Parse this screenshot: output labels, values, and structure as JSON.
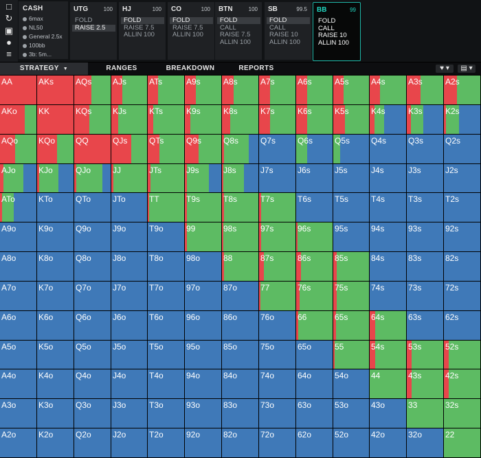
{
  "colors": {
    "raise": "#e8464b",
    "call": "#5dbb63",
    "fold": "#3f79b8",
    "active_accent": "#1fb8a8"
  },
  "cash_panel": {
    "title": "CASH",
    "lines": [
      "6max",
      "NL50",
      "General 2.5x",
      "100bb",
      "3b: 5m..."
    ]
  },
  "side_tools": [
    "bookmark-icon",
    "refresh-icon",
    "save-icon",
    "gamepad-icon",
    "sliders-icon"
  ],
  "positions": [
    {
      "name": "UTG",
      "stack": "100",
      "actions": [
        "FOLD",
        "RAISE 2.5"
      ],
      "selected": 1
    },
    {
      "name": "HJ",
      "stack": "100",
      "actions": [
        "FOLD",
        "RAISE 7.5",
        "ALLIN 100"
      ],
      "selected": 0
    },
    {
      "name": "CO",
      "stack": "100",
      "actions": [
        "FOLD",
        "RAISE 7.5",
        "ALLIN 100"
      ],
      "selected": 0
    },
    {
      "name": "BTN",
      "stack": "100",
      "actions": [
        "FOLD",
        "CALL",
        "RAISE 7.5",
        "ALLIN 100"
      ],
      "selected": 0
    },
    {
      "name": "SB",
      "stack": "99.5",
      "actions": [
        "FOLD",
        "CALL",
        "RAISE 10",
        "ALLIN 100"
      ],
      "selected": 0
    },
    {
      "name": "BB",
      "stack": "99",
      "actions": [
        "FOLD",
        "CALL",
        "RAISE 10",
        "ALLIN 100"
      ],
      "selected": -1,
      "active": true
    }
  ],
  "tabs": [
    "STRATEGY",
    "RANGES",
    "BREAKDOWN",
    "REPORTS"
  ],
  "active_tab": 0,
  "grid": {
    "rows": [
      [
        "AA",
        "AKs",
        "AQs",
        "AJs",
        "ATs",
        "A9s",
        "A8s",
        "A7s",
        "A6s",
        "A5s",
        "A4s",
        "A3s",
        "A2s"
      ],
      [
        "AKo",
        "KK",
        "KQs",
        "KJs",
        "KTs",
        "K9s",
        "K8s",
        "K7s",
        "K6s",
        "K5s",
        "K4s",
        "K3s",
        "K2s"
      ],
      [
        "AQo",
        "KQo",
        "QQ",
        "QJs",
        "QTs",
        "Q9s",
        "Q8s",
        "Q7s",
        "Q6s",
        "Q5s",
        "Q4s",
        "Q3s",
        "Q2s"
      ],
      [
        "AJo",
        "KJo",
        "QJo",
        "JJ",
        "JTs",
        "J9s",
        "J8s",
        "J7s",
        "J6s",
        "J5s",
        "J4s",
        "J3s",
        "J2s"
      ],
      [
        "ATo",
        "KTo",
        "QTo",
        "JTo",
        "TT",
        "T9s",
        "T8s",
        "T7s",
        "T6s",
        "T5s",
        "T4s",
        "T3s",
        "T2s"
      ],
      [
        "A9o",
        "K9o",
        "Q9o",
        "J9o",
        "T9o",
        "99",
        "98s",
        "97s",
        "96s",
        "95s",
        "94s",
        "93s",
        "92s"
      ],
      [
        "A8o",
        "K8o",
        "Q8o",
        "J8o",
        "T8o",
        "98o",
        "88",
        "87s",
        "86s",
        "85s",
        "84s",
        "83s",
        "82s"
      ],
      [
        "A7o",
        "K7o",
        "Q7o",
        "J7o",
        "T7o",
        "97o",
        "87o",
        "77",
        "76s",
        "75s",
        "74s",
        "73s",
        "72s"
      ],
      [
        "A6o",
        "K6o",
        "Q6o",
        "J6o",
        "T6o",
        "96o",
        "86o",
        "76o",
        "66",
        "65s",
        "64s",
        "63s",
        "62s"
      ],
      [
        "A5o",
        "K5o",
        "Q5o",
        "J5o",
        "T5o",
        "95o",
        "85o",
        "75o",
        "65o",
        "55",
        "54s",
        "53s",
        "52s"
      ],
      [
        "A4o",
        "K4o",
        "Q4o",
        "J4o",
        "T4o",
        "94o",
        "84o",
        "74o",
        "64o",
        "54o",
        "44",
        "43s",
        "42s"
      ],
      [
        "A3o",
        "K3o",
        "Q3o",
        "J3o",
        "T3o",
        "93o",
        "83o",
        "73o",
        "63o",
        "53o",
        "43o",
        "33",
        "32s"
      ],
      [
        "A2o",
        "K2o",
        "Q2o",
        "J2o",
        "T2o",
        "92o",
        "82o",
        "72o",
        "62o",
        "52o",
        "42o",
        "32o",
        "22"
      ]
    ],
    "strategy": [
      [
        [
          1,
          0,
          0
        ],
        [
          1,
          0,
          0
        ],
        [
          0.47,
          0.53,
          0
        ],
        [
          0.3,
          0.7,
          0
        ],
        [
          0.28,
          0.72,
          0
        ],
        [
          0.3,
          0.7,
          0
        ],
        [
          0.32,
          0.68,
          0
        ],
        [
          0.3,
          0.7,
          0
        ],
        [
          0.3,
          0.7,
          0
        ],
        [
          0.28,
          0.72,
          0
        ],
        [
          0.28,
          0.72,
          0
        ],
        [
          0.38,
          0.62,
          0
        ],
        [
          0.35,
          0.65,
          0
        ]
      ],
      [
        [
          0.68,
          0.32,
          0
        ],
        [
          1,
          0,
          0
        ],
        [
          0.42,
          0.58,
          0
        ],
        [
          0.2,
          0.8,
          0
        ],
        [
          0.16,
          0.84,
          0
        ],
        [
          0.15,
          0.85,
          0
        ],
        [
          0.22,
          0.78,
          0
        ],
        [
          0.3,
          0.7,
          0
        ],
        [
          0.3,
          0.7,
          0
        ],
        [
          0.33,
          0.67,
          0
        ],
        [
          0.13,
          0.27,
          0.6
        ],
        [
          0.12,
          0.33,
          0.55
        ],
        [
          0.06,
          0.35,
          0.59
        ]
      ],
      [
        [
          0.42,
          0.58,
          0
        ],
        [
          0.55,
          0.45,
          0
        ],
        [
          1,
          0,
          0
        ],
        [
          0.55,
          0.45,
          0
        ],
        [
          0.33,
          0.67,
          0
        ],
        [
          0.38,
          0.62,
          0
        ],
        [
          0.05,
          0.69,
          0.26
        ],
        [
          0,
          0,
          1
        ],
        [
          0,
          0.31,
          0.69
        ],
        [
          0,
          0.2,
          0.8
        ],
        [
          0,
          0,
          1
        ],
        [
          0,
          0,
          1
        ],
        [
          0,
          0,
          1
        ]
      ],
      [
        [
          0.1,
          0.55,
          0.35
        ],
        [
          0.05,
          0.53,
          0.42
        ],
        [
          0.05,
          0.73,
          0.22
        ],
        [
          0.06,
          0.94,
          0
        ],
        [
          0.08,
          0.92,
          0
        ],
        [
          0.06,
          0.6,
          0.34
        ],
        [
          0.04,
          0.57,
          0.39
        ],
        [
          0,
          0,
          1
        ],
        [
          0,
          0,
          1
        ],
        [
          0,
          0,
          1
        ],
        [
          0,
          0,
          1
        ],
        [
          0,
          0,
          1
        ],
        [
          0,
          0,
          1
        ]
      ],
      [
        [
          0.06,
          0.31,
          0.63
        ],
        [
          0,
          0,
          1
        ],
        [
          0,
          0,
          1
        ],
        [
          0,
          0,
          1
        ],
        [
          0.04,
          0.96,
          0
        ],
        [
          0.05,
          0.95,
          0
        ],
        [
          0.05,
          0.95,
          0
        ],
        [
          0.05,
          0.95,
          0
        ],
        [
          0,
          0,
          1
        ],
        [
          0,
          0,
          1
        ],
        [
          0,
          0,
          1
        ],
        [
          0,
          0,
          1
        ],
        [
          0,
          0,
          1
        ]
      ],
      [
        [
          0,
          0,
          1
        ],
        [
          0,
          0,
          1
        ],
        [
          0,
          0,
          1
        ],
        [
          0,
          0,
          1
        ],
        [
          0,
          0,
          1
        ],
        [
          0.05,
          0.95,
          0
        ],
        [
          0.04,
          0.96,
          0
        ],
        [
          0.06,
          0.94,
          0
        ],
        [
          0.04,
          0.96,
          0
        ],
        [
          0,
          0,
          1
        ],
        [
          0,
          0,
          1
        ],
        [
          0,
          0,
          1
        ],
        [
          0,
          0,
          1
        ]
      ],
      [
        [
          0,
          0,
          1
        ],
        [
          0,
          0,
          1
        ],
        [
          0,
          0,
          1
        ],
        [
          0,
          0,
          1
        ],
        [
          0,
          0,
          1
        ],
        [
          0,
          0,
          1
        ],
        [
          0.05,
          0.95,
          0
        ],
        [
          0.13,
          0.87,
          0
        ],
        [
          0.13,
          0.87,
          0
        ],
        [
          0.09,
          0.91,
          0
        ],
        [
          0,
          0,
          1
        ],
        [
          0,
          0,
          1
        ],
        [
          0,
          0,
          1
        ]
      ],
      [
        [
          0,
          0,
          1
        ],
        [
          0,
          0,
          1
        ],
        [
          0,
          0,
          1
        ],
        [
          0,
          0,
          1
        ],
        [
          0,
          0,
          1
        ],
        [
          0,
          0,
          1
        ],
        [
          0,
          0,
          1
        ],
        [
          0.04,
          0.96,
          0
        ],
        [
          0.09,
          0.91,
          0
        ],
        [
          0.09,
          0.91,
          0
        ],
        [
          0,
          0,
          1
        ],
        [
          0,
          0,
          1
        ],
        [
          0,
          0,
          1
        ]
      ],
      [
        [
          0,
          0,
          1
        ],
        [
          0,
          0,
          1
        ],
        [
          0,
          0,
          1
        ],
        [
          0,
          0,
          1
        ],
        [
          0,
          0,
          1
        ],
        [
          0,
          0,
          1
        ],
        [
          0,
          0,
          1
        ],
        [
          0,
          0,
          1
        ],
        [
          0.06,
          0.94,
          0
        ],
        [
          0.07,
          0.93,
          0
        ],
        [
          0.15,
          0.85,
          0
        ],
        [
          0,
          0,
          1
        ],
        [
          0,
          0,
          1
        ]
      ],
      [
        [
          0,
          0,
          1
        ],
        [
          0,
          0,
          1
        ],
        [
          0,
          0,
          1
        ],
        [
          0,
          0,
          1
        ],
        [
          0,
          0,
          1
        ],
        [
          0,
          0,
          1
        ],
        [
          0,
          0,
          1
        ],
        [
          0,
          0,
          1
        ],
        [
          0,
          0,
          1
        ],
        [
          0.03,
          0.97,
          0
        ],
        [
          0.15,
          0.85,
          0
        ],
        [
          0.14,
          0.86,
          0
        ],
        [
          0.13,
          0.87,
          0
        ]
      ],
      [
        [
          0,
          0,
          1
        ],
        [
          0,
          0,
          1
        ],
        [
          0,
          0,
          1
        ],
        [
          0,
          0,
          1
        ],
        [
          0,
          0,
          1
        ],
        [
          0,
          0,
          1
        ],
        [
          0,
          0,
          1
        ],
        [
          0,
          0,
          1
        ],
        [
          0,
          0,
          1
        ],
        [
          0,
          0,
          1
        ],
        [
          0,
          1,
          0
        ],
        [
          0.13,
          0.87,
          0
        ],
        [
          0.13,
          0.87,
          0
        ]
      ],
      [
        [
          0,
          0,
          1
        ],
        [
          0,
          0,
          1
        ],
        [
          0,
          0,
          1
        ],
        [
          0,
          0,
          1
        ],
        [
          0,
          0,
          1
        ],
        [
          0,
          0,
          1
        ],
        [
          0,
          0,
          1
        ],
        [
          0,
          0,
          1
        ],
        [
          0,
          0,
          1
        ],
        [
          0,
          0,
          1
        ],
        [
          0,
          0,
          1
        ],
        [
          0,
          1,
          0
        ],
        [
          0,
          1,
          0
        ]
      ],
      [
        [
          0,
          0,
          1
        ],
        [
          0,
          0,
          1
        ],
        [
          0,
          0,
          1
        ],
        [
          0,
          0,
          1
        ],
        [
          0,
          0,
          1
        ],
        [
          0,
          0,
          1
        ],
        [
          0,
          0,
          1
        ],
        [
          0,
          0,
          1
        ],
        [
          0,
          0,
          1
        ],
        [
          0,
          0,
          1
        ],
        [
          0,
          0,
          1
        ],
        [
          0,
          0,
          1
        ],
        [
          0,
          1,
          0
        ]
      ]
    ]
  }
}
